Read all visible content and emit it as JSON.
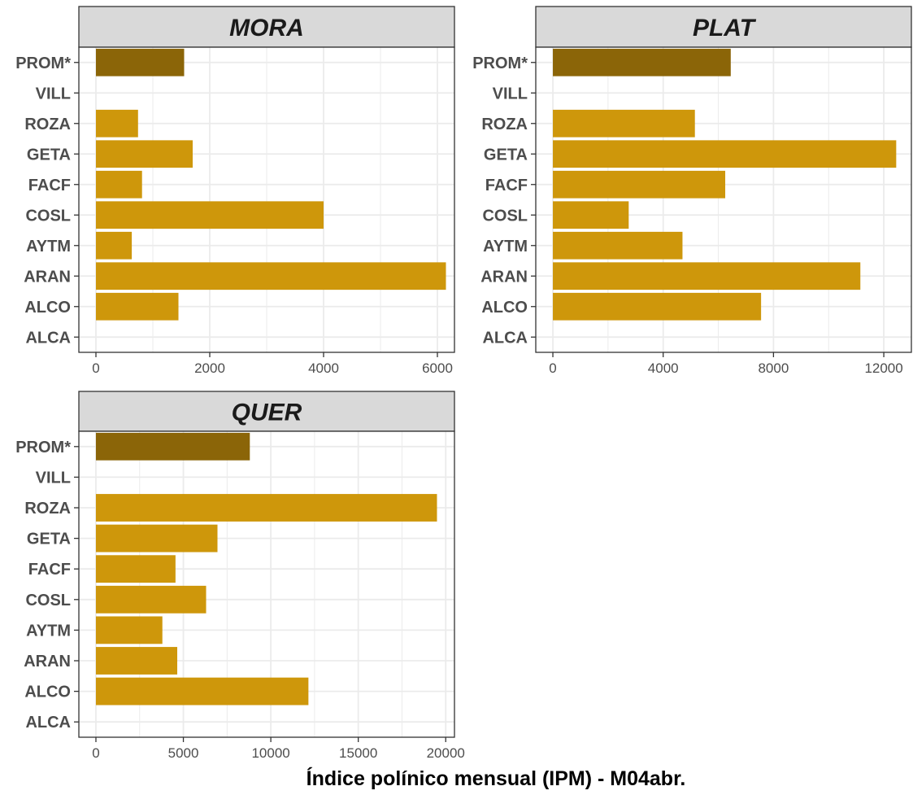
{
  "chart_data": {
    "type": "bar",
    "orientation": "horizontal",
    "categories": [
      "PROM*",
      "VILL",
      "ROZA",
      "GETA",
      "FACF",
      "COSL",
      "AYTM",
      "ARAN",
      "ALCO",
      "ALCA"
    ],
    "xlabel": "Índice polínico mensual (IPM) - M04abr.",
    "colors": {
      "bar": "#CE970B",
      "highlight": "#8B6508",
      "strip_bg": "#D9D9D9",
      "grid": "#EBEBEB",
      "border": "#333333"
    },
    "grid": true,
    "panels": [
      {
        "title": "MORA",
        "xlim": [
          -300,
          6300
        ],
        "ticks": [
          0,
          2000,
          4000,
          6000
        ],
        "tick_labels": [
          "0",
          "2000",
          "4000",
          "6000"
        ],
        "values": [
          1550,
          0,
          740,
          1700,
          810,
          4000,
          630,
          6150,
          1450,
          0
        ]
      },
      {
        "title": "PLAT",
        "xlim": [
          -620,
          13000
        ],
        "ticks": [
          0,
          4000,
          8000,
          12000
        ],
        "tick_labels": [
          "0",
          "4000",
          "8000",
          "12000"
        ],
        "values": [
          6450,
          0,
          5150,
          12450,
          6250,
          2750,
          4700,
          11150,
          7550,
          0
        ]
      },
      {
        "title": "QUER",
        "xlim": [
          -975,
          20500
        ],
        "ticks": [
          0,
          5000,
          10000,
          15000,
          20000
        ],
        "tick_labels": [
          "0",
          "5000",
          "10000",
          "15000",
          "20000"
        ],
        "values": [
          8800,
          0,
          19500,
          6950,
          4550,
          6300,
          3800,
          4650,
          12150,
          0
        ]
      }
    ]
  }
}
